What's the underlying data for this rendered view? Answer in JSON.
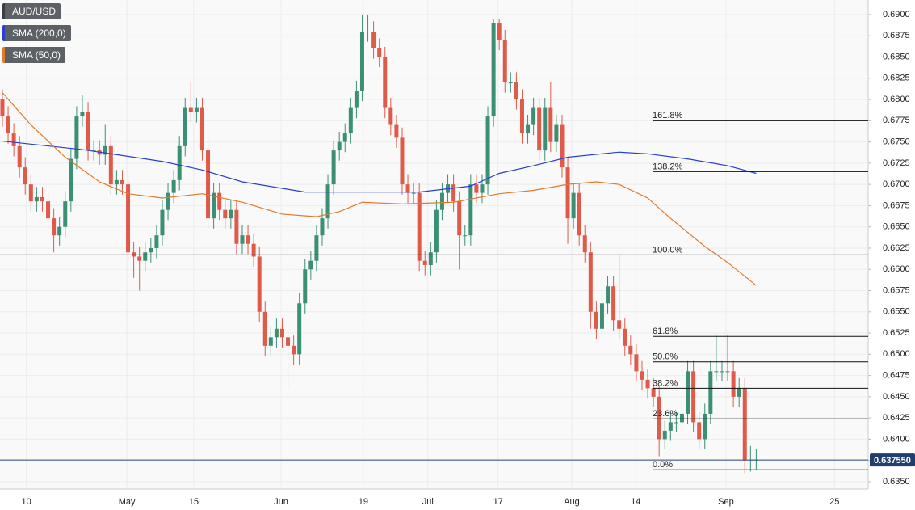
{
  "chart_data": {
    "type": "candlestick",
    "symbol": "AUD/USD",
    "up_color": "#3b8f75",
    "down_color": "#e05a4a",
    "ylim": [
      0.63414,
      0.69171
    ],
    "yticks": [
      {
        "value": 0.635,
        "label": "0.6350"
      },
      {
        "value": 0.6375,
        "label": "0.6375"
      },
      {
        "value": 0.64,
        "label": "0.6400"
      },
      {
        "value": 0.6425,
        "label": "0.6425"
      },
      {
        "value": 0.645,
        "label": "0.6450"
      },
      {
        "value": 0.6475,
        "label": "0.6475"
      },
      {
        "value": 0.65,
        "label": "0.6500"
      },
      {
        "value": 0.6525,
        "label": "0.6525"
      },
      {
        "value": 0.655,
        "label": "0.6550"
      },
      {
        "value": 0.6575,
        "label": "0.6575"
      },
      {
        "value": 0.66,
        "label": "0.6600"
      },
      {
        "value": 0.6625,
        "label": "0.6625"
      },
      {
        "value": 0.665,
        "label": "0.6650"
      },
      {
        "value": 0.6675,
        "label": "0.6675"
      },
      {
        "value": 0.67,
        "label": "0.6700"
      },
      {
        "value": 0.6725,
        "label": "0.6725"
      },
      {
        "value": 0.675,
        "label": "0.6750"
      },
      {
        "value": 0.6775,
        "label": "0.6775"
      },
      {
        "value": 0.68,
        "label": "0.6800"
      },
      {
        "value": 0.6825,
        "label": "0.6825"
      },
      {
        "value": 0.685,
        "label": "0.6850"
      },
      {
        "value": 0.6875,
        "label": "0.6875"
      },
      {
        "value": 0.69,
        "label": "0.6900"
      }
    ],
    "xlim": [
      -0.42,
      151.6
    ],
    "xticks": [
      {
        "value": 4.2,
        "label": "10"
      },
      {
        "value": 21.8,
        "label": "May"
      },
      {
        "value": 33.5,
        "label": "15"
      },
      {
        "value": 48.8,
        "label": "Jun"
      },
      {
        "value": 63.2,
        "label": "19"
      },
      {
        "value": 74.5,
        "label": "Jul"
      },
      {
        "value": 86.8,
        "label": "17"
      },
      {
        "value": 99.7,
        "label": "Aug"
      },
      {
        "value": 110.9,
        "label": "14"
      },
      {
        "value": 126.7,
        "label": "Sep"
      },
      {
        "value": 145.7,
        "label": "25"
      }
    ],
    "ohlc": [
      [
        0.68,
        0.6812,
        0.6768,
        0.678
      ],
      [
        0.678,
        0.6792,
        0.6748,
        0.676
      ],
      [
        0.676,
        0.6772,
        0.6733,
        0.6745
      ],
      [
        0.6745,
        0.6757,
        0.6708,
        0.672
      ],
      [
        0.672,
        0.6732,
        0.6688,
        0.67
      ],
      [
        0.67,
        0.6712,
        0.6668,
        0.668
      ],
      [
        0.668,
        0.6697,
        0.6668,
        0.6685
      ],
      [
        0.6685,
        0.6697,
        0.6668,
        0.668
      ],
      [
        0.668,
        0.6692,
        0.6648,
        0.666
      ],
      [
        0.666,
        0.6672,
        0.662,
        0.664
      ],
      [
        0.664,
        0.6662,
        0.6628,
        0.665
      ],
      [
        0.665,
        0.6692,
        0.6638,
        0.668
      ],
      [
        0.668,
        0.6742,
        0.6668,
        0.673
      ],
      [
        0.673,
        0.6792,
        0.6718,
        0.678
      ],
      [
        0.678,
        0.6805,
        0.6768,
        0.6785
      ],
      [
        0.6785,
        0.6797,
        0.6728,
        0.674
      ],
      [
        0.674,
        0.6752,
        0.6728,
        0.674
      ],
      [
        0.674,
        0.6752,
        0.6723,
        0.6735
      ],
      [
        0.6735,
        0.677,
        0.6723,
        0.6745
      ],
      [
        0.6745,
        0.6757,
        0.6688,
        0.67
      ],
      [
        0.67,
        0.6717,
        0.6688,
        0.6705
      ],
      [
        0.6705,
        0.6717,
        0.6688,
        0.67
      ],
      [
        0.67,
        0.6712,
        0.6608,
        0.662
      ],
      [
        0.662,
        0.6632,
        0.659,
        0.6615
      ],
      [
        0.6615,
        0.6627,
        0.6575,
        0.661
      ],
      [
        0.661,
        0.6632,
        0.6598,
        0.662
      ],
      [
        0.662,
        0.6637,
        0.6608,
        0.6625
      ],
      [
        0.6625,
        0.6652,
        0.6613,
        0.664
      ],
      [
        0.664,
        0.6682,
        0.6628,
        0.667
      ],
      [
        0.667,
        0.6702,
        0.6658,
        0.669
      ],
      [
        0.669,
        0.6717,
        0.6678,
        0.6705
      ],
      [
        0.6705,
        0.6757,
        0.6693,
        0.6745
      ],
      [
        0.6745,
        0.6802,
        0.6733,
        0.679
      ],
      [
        0.679,
        0.682,
        0.6773,
        0.6785
      ],
      [
        0.6785,
        0.6802,
        0.6773,
        0.679
      ],
      [
        0.679,
        0.6802,
        0.6728,
        0.674
      ],
      [
        0.674,
        0.6752,
        0.6648,
        0.666
      ],
      [
        0.666,
        0.6702,
        0.6648,
        0.669
      ],
      [
        0.669,
        0.6702,
        0.6658,
        0.667
      ],
      [
        0.667,
        0.6682,
        0.6648,
        0.666
      ],
      [
        0.666,
        0.6682,
        0.6648,
        0.667
      ],
      [
        0.667,
        0.6682,
        0.6618,
        0.663
      ],
      [
        0.663,
        0.6652,
        0.6618,
        0.664
      ],
      [
        0.664,
        0.6652,
        0.6618,
        0.663
      ],
      [
        0.663,
        0.6642,
        0.6603,
        0.6615
      ],
      [
        0.6615,
        0.6627,
        0.6538,
        0.655
      ],
      [
        0.655,
        0.6562,
        0.6498,
        0.651
      ],
      [
        0.651,
        0.6532,
        0.6498,
        0.652
      ],
      [
        0.652,
        0.6542,
        0.6508,
        0.653
      ],
      [
        0.653,
        0.6542,
        0.6508,
        0.652
      ],
      [
        0.652,
        0.6532,
        0.646,
        0.651
      ],
      [
        0.651,
        0.6522,
        0.6488,
        0.65
      ],
      [
        0.65,
        0.6572,
        0.6488,
        0.656
      ],
      [
        0.656,
        0.6612,
        0.6548,
        0.66
      ],
      [
        0.66,
        0.6622,
        0.6588,
        0.661
      ],
      [
        0.661,
        0.6652,
        0.6598,
        0.664
      ],
      [
        0.664,
        0.6672,
        0.6628,
        0.666
      ],
      [
        0.666,
        0.6712,
        0.6648,
        0.67
      ],
      [
        0.67,
        0.6752,
        0.6688,
        0.674
      ],
      [
        0.674,
        0.6762,
        0.6728,
        0.675
      ],
      [
        0.675,
        0.6772,
        0.6738,
        0.676
      ],
      [
        0.676,
        0.6802,
        0.6748,
        0.679
      ],
      [
        0.679,
        0.6822,
        0.6778,
        0.681
      ],
      [
        0.681,
        0.69,
        0.6798,
        0.688
      ],
      [
        0.688,
        0.69,
        0.6868,
        0.688
      ],
      [
        0.688,
        0.6892,
        0.6848,
        0.686
      ],
      [
        0.686,
        0.6872,
        0.6838,
        0.685
      ],
      [
        0.685,
        0.6862,
        0.6778,
        0.679
      ],
      [
        0.679,
        0.6802,
        0.6758,
        0.677
      ],
      [
        0.677,
        0.6782,
        0.6743,
        0.6755
      ],
      [
        0.6755,
        0.6767,
        0.6688,
        0.67
      ],
      [
        0.67,
        0.6712,
        0.6678,
        0.669
      ],
      [
        0.669,
        0.6702,
        0.6678,
        0.669
      ],
      [
        0.669,
        0.6702,
        0.6598,
        0.661
      ],
      [
        0.661,
        0.6622,
        0.6593,
        0.6605
      ],
      [
        0.6605,
        0.6632,
        0.6593,
        0.662
      ],
      [
        0.662,
        0.6682,
        0.6608,
        0.667
      ],
      [
        0.667,
        0.6702,
        0.6658,
        0.669
      ],
      [
        0.669,
        0.6712,
        0.6678,
        0.67
      ],
      [
        0.67,
        0.6712,
        0.6668,
        0.668
      ],
      [
        0.668,
        0.6692,
        0.66,
        0.664
      ],
      [
        0.664,
        0.6652,
        0.6628,
        0.664
      ],
      [
        0.664,
        0.6712,
        0.6628,
        0.67
      ],
      [
        0.67,
        0.6712,
        0.6678,
        0.669
      ],
      [
        0.669,
        0.6712,
        0.6678,
        0.67
      ],
      [
        0.67,
        0.6792,
        0.6688,
        0.678
      ],
      [
        0.678,
        0.6895,
        0.6768,
        0.689
      ],
      [
        0.689,
        0.6895,
        0.6858,
        0.687
      ],
      [
        0.687,
        0.6882,
        0.6808,
        0.682
      ],
      [
        0.682,
        0.6832,
        0.6808,
        0.682
      ],
      [
        0.682,
        0.6832,
        0.6788,
        0.68
      ],
      [
        0.68,
        0.6812,
        0.6748,
        0.676
      ],
      [
        0.676,
        0.6782,
        0.6748,
        0.677
      ],
      [
        0.677,
        0.6802,
        0.6758,
        0.679
      ],
      [
        0.679,
        0.6802,
        0.6728,
        0.674
      ],
      [
        0.674,
        0.6802,
        0.6728,
        0.679
      ],
      [
        0.679,
        0.682,
        0.6738,
        0.675
      ],
      [
        0.675,
        0.6782,
        0.6738,
        0.677
      ],
      [
        0.677,
        0.6782,
        0.6708,
        0.672
      ],
      [
        0.672,
        0.6732,
        0.663,
        0.666
      ],
      [
        0.666,
        0.6702,
        0.6648,
        0.669
      ],
      [
        0.669,
        0.6702,
        0.6628,
        0.664
      ],
      [
        0.664,
        0.6652,
        0.6608,
        0.662
      ],
      [
        0.662,
        0.6632,
        0.653,
        0.655
      ],
      [
        0.655,
        0.6562,
        0.6518,
        0.653
      ],
      [
        0.653,
        0.6572,
        0.6518,
        0.656
      ],
      [
        0.656,
        0.6592,
        0.6548,
        0.658
      ],
      [
        0.658,
        0.6592,
        0.6528,
        0.654
      ],
      [
        0.654,
        0.6618,
        0.6518,
        0.653
      ],
      [
        0.653,
        0.6542,
        0.6498,
        0.651
      ],
      [
        0.651,
        0.6522,
        0.6488,
        0.65
      ],
      [
        0.65,
        0.6512,
        0.6468,
        0.648
      ],
      [
        0.648,
        0.6492,
        0.6458,
        0.647
      ],
      [
        0.647,
        0.6482,
        0.6448,
        0.646
      ],
      [
        0.646,
        0.6472,
        0.6438,
        0.645
      ],
      [
        0.645,
        0.6462,
        0.638,
        0.64
      ],
      [
        0.64,
        0.6422,
        0.6388,
        0.641
      ],
      [
        0.641,
        0.6432,
        0.6398,
        0.642
      ],
      [
        0.642,
        0.6432,
        0.6408,
        0.642
      ],
      [
        0.642,
        0.6442,
        0.6408,
        0.643
      ],
      [
        0.643,
        0.6492,
        0.6418,
        0.648
      ],
      [
        0.648,
        0.6492,
        0.6408,
        0.642
      ],
      [
        0.642,
        0.6432,
        0.6388,
        0.64
      ],
      [
        0.64,
        0.6442,
        0.6388,
        0.643
      ],
      [
        0.643,
        0.6492,
        0.6418,
        0.648
      ],
      [
        0.648,
        0.6522,
        0.6468,
        0.648
      ],
      [
        0.648,
        0.6492,
        0.6468,
        0.648
      ],
      [
        0.648,
        0.6522,
        0.6468,
        0.648
      ],
      [
        0.648,
        0.6492,
        0.6438,
        0.645
      ],
      [
        0.645,
        0.6472,
        0.6438,
        0.646
      ],
      [
        0.646,
        0.6472,
        0.636,
        0.6375
      ],
      [
        0.6375,
        0.6392,
        0.6362,
        0.6376
      ],
      [
        0.6376,
        0.6388,
        0.6364,
        0.6376
      ]
    ],
    "series": [
      {
        "name": "SMA (200,0)",
        "color": "#2a3fd0",
        "x": [
          0,
          14,
          28,
          35,
          42,
          53,
          63,
          73,
          82,
          87,
          93,
          99,
          108,
          113,
          120,
          127,
          132
        ],
        "values": [
          0.6751,
          0.6741,
          0.6727,
          0.6717,
          0.6703,
          0.6691,
          0.6691,
          0.6691,
          0.6698,
          0.6713,
          0.6722,
          0.6732,
          0.6738,
          0.6736,
          0.673,
          0.6722,
          0.6713
        ]
      },
      {
        "name": "SMA (50,0)",
        "color": "#e07b2c",
        "x": [
          0,
          5,
          11,
          17,
          22,
          28,
          35,
          42,
          49,
          55,
          59,
          63,
          70,
          79,
          87,
          93,
          99,
          104,
          108,
          113,
          117,
          123,
          127,
          132
        ],
        "values": [
          0.6808,
          0.677,
          0.6732,
          0.6703,
          0.6689,
          0.6684,
          0.6689,
          0.6679,
          0.6665,
          0.6662,
          0.6668,
          0.6679,
          0.6677,
          0.6679,
          0.6689,
          0.6693,
          0.67,
          0.6703,
          0.67,
          0.6684,
          0.666,
          0.6627,
          0.6608,
          0.6581
        ]
      }
    ],
    "fib_levels": [
      {
        "label": "161.8%",
        "value": 0.6775
      },
      {
        "label": "138.2%",
        "value": 0.6715
      },
      {
        "label": "100.0%",
        "value": 0.6617,
        "extend": true
      },
      {
        "label": "61.8%",
        "value": 0.6521
      },
      {
        "label": "50.0%",
        "value": 0.6491
      },
      {
        "label": "38.2%",
        "value": 0.646
      },
      {
        "label": "23.6%",
        "value": 0.6424
      },
      {
        "label": "0.0%",
        "value": 0.6364
      }
    ],
    "last_price": {
      "value": 0.63755,
      "label": "0.637550"
    }
  }
}
